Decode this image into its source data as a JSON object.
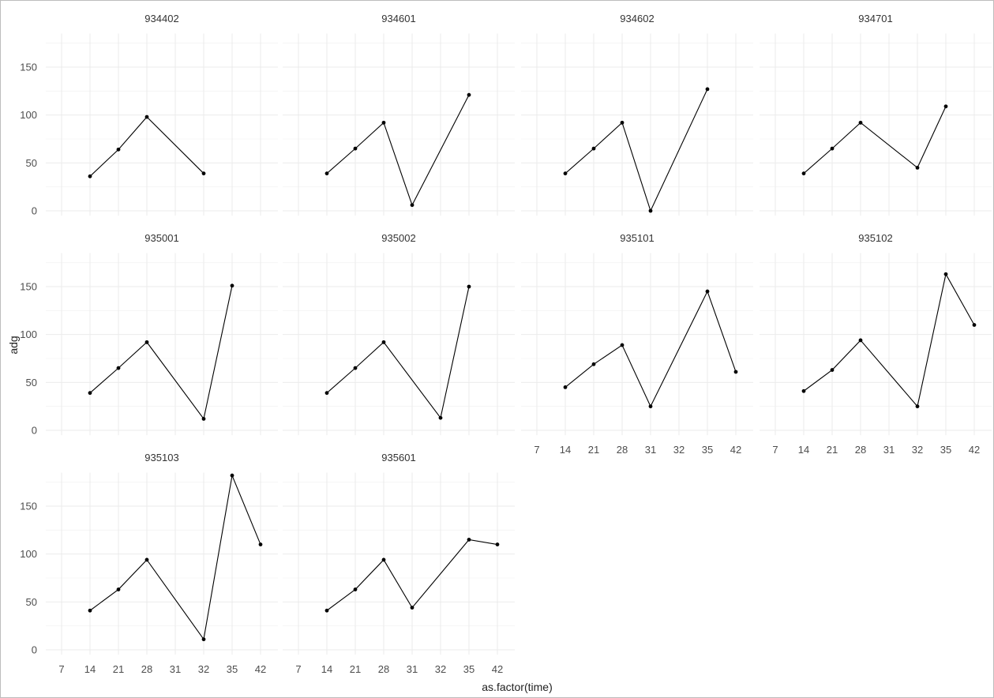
{
  "chart_data": {
    "type": "line",
    "layout": "facet_wrap",
    "xlabel": "as.factor(time)",
    "ylabel": "adg",
    "categories": [
      "7",
      "14",
      "21",
      "28",
      "31",
      "32",
      "35",
      "42"
    ],
    "ylim": [
      -5,
      185
    ],
    "yticks": [
      0,
      50,
      100,
      150
    ],
    "grid": true,
    "style": {
      "line_color": "#000000",
      "grid_color": "#ebebeb",
      "background": "#ffffff"
    },
    "panels": [
      {
        "id": "934402",
        "points": [
          {
            "x": "14",
            "y": 36
          },
          {
            "x": "21",
            "y": 64
          },
          {
            "x": "28",
            "y": 98
          },
          {
            "x": "32",
            "y": 39
          }
        ]
      },
      {
        "id": "934601",
        "points": [
          {
            "x": "14",
            "y": 39
          },
          {
            "x": "21",
            "y": 65
          },
          {
            "x": "28",
            "y": 92
          },
          {
            "x": "31",
            "y": 6
          },
          {
            "x": "35",
            "y": 121
          }
        ]
      },
      {
        "id": "934602",
        "points": [
          {
            "x": "14",
            "y": 39
          },
          {
            "x": "21",
            "y": 65
          },
          {
            "x": "28",
            "y": 92
          },
          {
            "x": "31",
            "y": 0
          },
          {
            "x": "35",
            "y": 127
          }
        ]
      },
      {
        "id": "934701",
        "points": [
          {
            "x": "14",
            "y": 39
          },
          {
            "x": "21",
            "y": 65
          },
          {
            "x": "28",
            "y": 92
          },
          {
            "x": "32",
            "y": 45
          },
          {
            "x": "35",
            "y": 109
          }
        ]
      },
      {
        "id": "935001",
        "points": [
          {
            "x": "14",
            "y": 39
          },
          {
            "x": "21",
            "y": 65
          },
          {
            "x": "28",
            "y": 92
          },
          {
            "x": "32",
            "y": 12
          },
          {
            "x": "35",
            "y": 151
          }
        ]
      },
      {
        "id": "935002",
        "points": [
          {
            "x": "14",
            "y": 39
          },
          {
            "x": "21",
            "y": 65
          },
          {
            "x": "28",
            "y": 92
          },
          {
            "x": "32",
            "y": 13
          },
          {
            "x": "35",
            "y": 150
          }
        ]
      },
      {
        "id": "935101",
        "points": [
          {
            "x": "14",
            "y": 45
          },
          {
            "x": "21",
            "y": 69
          },
          {
            "x": "28",
            "y": 89
          },
          {
            "x": "31",
            "y": 25
          },
          {
            "x": "35",
            "y": 145
          },
          {
            "x": "42",
            "y": 61
          }
        ]
      },
      {
        "id": "935102",
        "points": [
          {
            "x": "14",
            "y": 41
          },
          {
            "x": "21",
            "y": 63
          },
          {
            "x": "28",
            "y": 94
          },
          {
            "x": "32",
            "y": 25
          },
          {
            "x": "35",
            "y": 163
          },
          {
            "x": "42",
            "y": 110
          }
        ]
      },
      {
        "id": "935103",
        "points": [
          {
            "x": "14",
            "y": 41
          },
          {
            "x": "21",
            "y": 63
          },
          {
            "x": "28",
            "y": 94
          },
          {
            "x": "32",
            "y": 11
          },
          {
            "x": "35",
            "y": 182
          },
          {
            "x": "42",
            "y": 110
          }
        ]
      },
      {
        "id": "935601",
        "points": [
          {
            "x": "14",
            "y": 41
          },
          {
            "x": "21",
            "y": 63
          },
          {
            "x": "28",
            "y": 94
          },
          {
            "x": "31",
            "y": 44
          },
          {
            "x": "35",
            "y": 115
          },
          {
            "x": "42",
            "y": 110
          }
        ]
      }
    ]
  }
}
